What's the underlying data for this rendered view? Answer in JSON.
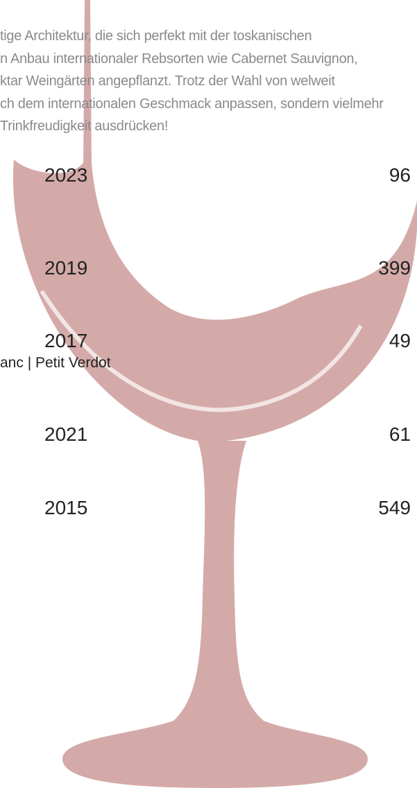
{
  "paragraph": [
    "tige Architektur, die sich perfekt mit der toskanischen",
    "n Anbau internationaler Rebsorten wie Cabernet Sauvignon,",
    "ktar Weingärten angepflanzt. Trotz der Wahl von welweit",
    "ch dem internationalen Geschmack anpassen, sondern vielmehr",
    " Trinkfreudigkeit ausdrücken!"
  ],
  "rows": [
    {
      "year": "2023",
      "value": 96
    },
    {
      "year": "2019",
      "value": 399
    },
    {
      "year": "2017",
      "value": 49,
      "grapes": "anc | Petit Verdot"
    },
    {
      "year": "2021",
      "value": 61
    },
    {
      "year": "2015",
      "value": 549
    }
  ]
}
